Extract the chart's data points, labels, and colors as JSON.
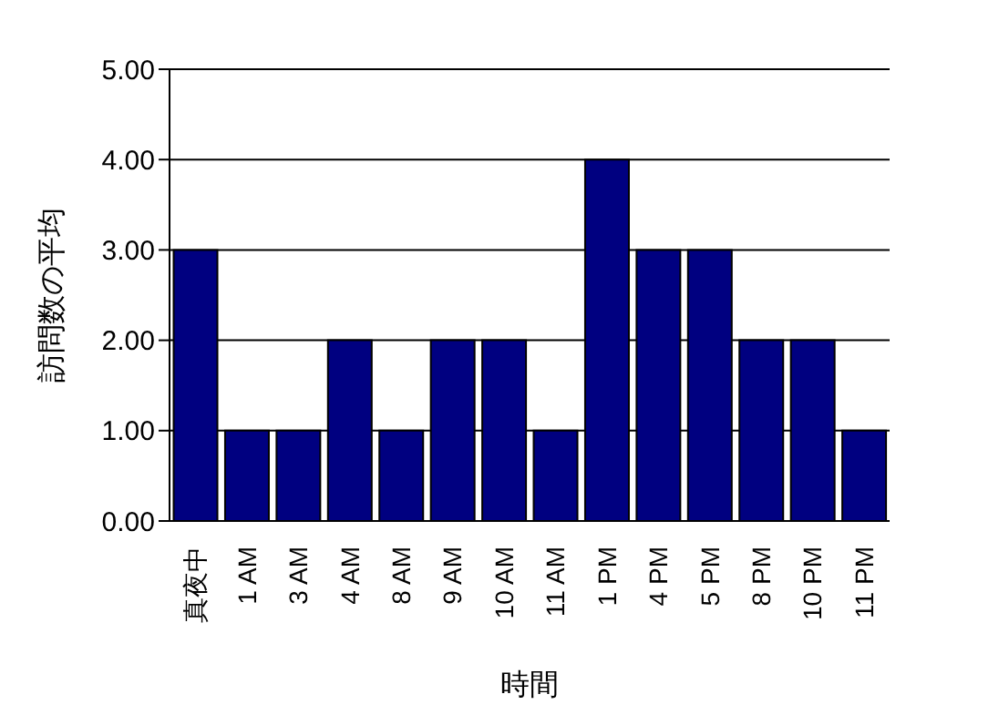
{
  "chart_data": {
    "type": "bar",
    "xlabel": "時間",
    "ylabel": "訪問数の平均",
    "categories": [
      "真夜中",
      "1 AM",
      "3 AM",
      "4 AM",
      "8 AM",
      "9 AM",
      "10 AM",
      "11 AM",
      "1 PM",
      "4 PM",
      "5 PM",
      "8 PM",
      "10 PM",
      "11 PM"
    ],
    "values": [
      3,
      1,
      1,
      2,
      1,
      2,
      2,
      1,
      4,
      3,
      3,
      2,
      2,
      1
    ],
    "color": "#000080",
    "ylim": [
      0,
      5
    ],
    "yticks": [
      {
        "value": 0,
        "label": "0.00"
      },
      {
        "value": 1,
        "label": "1.00"
      },
      {
        "value": 2,
        "label": "2.00"
      },
      {
        "value": 3,
        "label": "3.00"
      },
      {
        "value": 4,
        "label": "4.00"
      },
      {
        "value": 5,
        "label": "5.00"
      }
    ],
    "grid": "y"
  }
}
